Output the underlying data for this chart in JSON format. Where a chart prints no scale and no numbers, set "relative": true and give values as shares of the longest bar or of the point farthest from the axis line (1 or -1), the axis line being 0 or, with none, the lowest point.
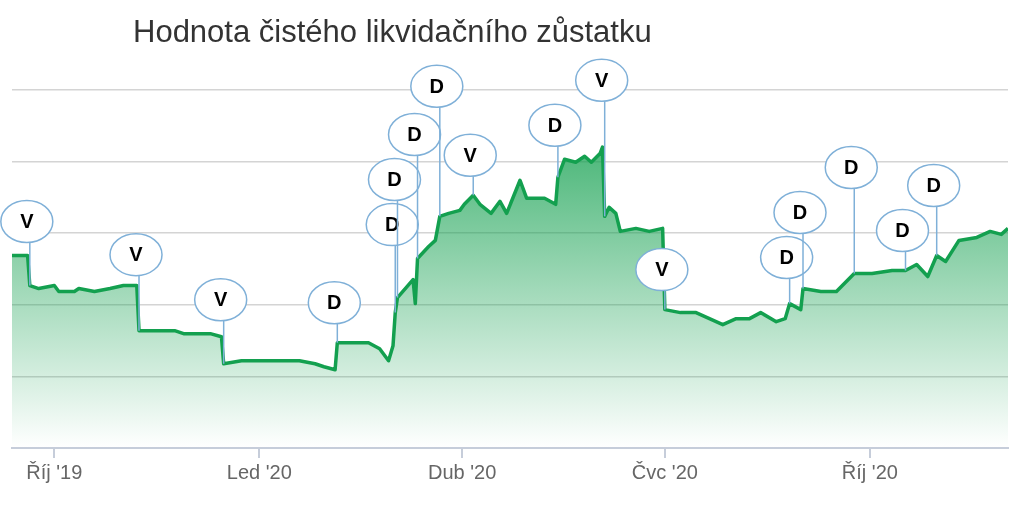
{
  "chart_data": {
    "type": "area",
    "title": "Hodnota čistého likvidačního zůstatku",
    "relative": true,
    "color": "#13a04f",
    "grid": "y",
    "legend": false,
    "x": [
      "2019-09-12",
      "2019-09-19",
      "2019-09-20",
      "2019-09-24",
      "2019-10-01",
      "2019-10-03",
      "2019-10-10",
      "2019-10-12",
      "2019-10-19",
      "2019-10-26",
      "2019-11-01",
      "2019-11-07",
      "2019-11-08",
      "2019-11-17",
      "2019-11-24",
      "2019-11-28",
      "2019-12-05",
      "2019-12-10",
      "2019-12-15",
      "2019-12-16",
      "2019-12-24",
      "2020-01-05",
      "2020-01-19",
      "2020-01-26",
      "2020-01-30",
      "2020-02-04",
      "2020-02-05",
      "2020-02-10",
      "2020-02-19",
      "2020-02-24",
      "2020-02-28",
      "2020-03-01",
      "2020-03-02",
      "2020-03-03",
      "2020-03-10",
      "2020-03-11",
      "2020-03-12",
      "2020-03-17",
      "2020-03-20",
      "2020-03-22",
      "2020-03-26",
      "2020-03-31",
      "2020-04-02",
      "2020-04-06",
      "2020-04-09",
      "2020-04-14",
      "2020-04-18",
      "2020-04-21",
      "2020-04-27",
      "2020-04-30",
      "2020-05-08",
      "2020-05-13",
      "2020-05-14",
      "2020-05-17",
      "2020-05-22",
      "2020-05-26",
      "2020-05-29",
      "2020-06-02",
      "2020-06-03",
      "2020-06-04",
      "2020-06-06",
      "2020-06-09",
      "2020-06-11",
      "2020-06-18",
      "2020-06-24",
      "2020-06-30",
      "2020-07-01",
      "2020-07-08",
      "2020-07-15",
      "2020-07-21",
      "2020-07-27",
      "2020-08-02",
      "2020-08-08",
      "2020-08-13",
      "2020-08-20",
      "2020-08-24",
      "2020-08-26",
      "2020-08-31",
      "2020-09-01",
      "2020-09-09",
      "2020-09-16",
      "2020-09-24",
      "2020-10-02",
      "2020-10-11",
      "2020-10-17",
      "2020-10-22",
      "2020-10-27",
      "2020-10-31",
      "2020-11-04",
      "2020-11-10",
      "2020-11-18",
      "2020-11-24",
      "2020-11-29",
      "2020-12-02"
    ],
    "values": [
      0.64,
      0.64,
      0.54,
      0.53,
      0.54,
      0.52,
      0.52,
      0.53,
      0.52,
      0.53,
      0.54,
      0.54,
      0.39,
      0.39,
      0.39,
      0.38,
      0.38,
      0.38,
      0.37,
      0.28,
      0.29,
      0.29,
      0.29,
      0.28,
      0.27,
      0.26,
      0.35,
      0.35,
      0.35,
      0.33,
      0.29,
      0.34,
      0.45,
      0.5,
      0.56,
      0.48,
      0.63,
      0.67,
      0.69,
      0.77,
      0.78,
      0.79,
      0.81,
      0.84,
      0.81,
      0.78,
      0.82,
      0.78,
      0.89,
      0.83,
      0.83,
      0.81,
      0.9,
      0.96,
      0.95,
      0.97,
      0.95,
      0.98,
      1,
      0.77,
      0.8,
      0.78,
      0.72,
      0.73,
      0.72,
      0.73,
      0.46,
      0.45,
      0.45,
      0.43,
      0.41,
      0.43,
      0.43,
      0.45,
      0.42,
      0.43,
      0.48,
      0.46,
      0.53,
      0.52,
      0.52,
      0.58,
      0.58,
      0.59,
      0.59,
      0.61,
      0.57,
      0.64,
      0.62,
      0.69,
      0.7,
      0.72,
      0.71,
      0.73
    ],
    "xlim": [
      "2019-09-12",
      "2020-12-02"
    ],
    "xticks": [
      {
        "value": "2019-10-01",
        "label": "Říj '19"
      },
      {
        "value": "2020-01-01",
        "label": "Led '20"
      },
      {
        "value": "2020-04-01",
        "label": "Dub '20"
      },
      {
        "value": "2020-07-01",
        "label": "Čvc '20"
      },
      {
        "value": "2020-10-01",
        "label": "Říj '20"
      }
    ],
    "annotations": [
      {
        "text": "V",
        "x": "2019-09-20",
        "y": 0.54
      },
      {
        "text": "V",
        "x": "2019-11-08",
        "y": 0.39
      },
      {
        "text": "V",
        "x": "2019-12-16",
        "y": 0.28
      },
      {
        "text": "D",
        "x": "2020-02-05",
        "y": 0.35
      },
      {
        "text": "D",
        "x": "2020-03-02",
        "y": 0.45
      },
      {
        "text": "D",
        "x": "2020-03-03",
        "y": 0.5
      },
      {
        "text": "D",
        "x": "2020-03-12",
        "y": 0.63
      },
      {
        "text": "D",
        "x": "2020-03-22",
        "y": 0.77
      },
      {
        "text": "V",
        "x": "2020-04-06",
        "y": 0.84
      },
      {
        "text": "D",
        "x": "2020-05-14",
        "y": 0.9
      },
      {
        "text": "V",
        "x": "2020-06-04",
        "y": 0.77
      },
      {
        "text": "V",
        "x": "2020-07-01",
        "y": 0.46
      },
      {
        "text": "D",
        "x": "2020-08-26",
        "y": 0.48
      },
      {
        "text": "D",
        "x": "2020-09-01",
        "y": 0.53
      },
      {
        "text": "D",
        "x": "2020-09-24",
        "y": 0.58
      },
      {
        "text": "D",
        "x": "2020-10-17",
        "y": 0.59
      },
      {
        "text": "D",
        "x": "2020-10-31",
        "y": 0.64
      }
    ]
  }
}
